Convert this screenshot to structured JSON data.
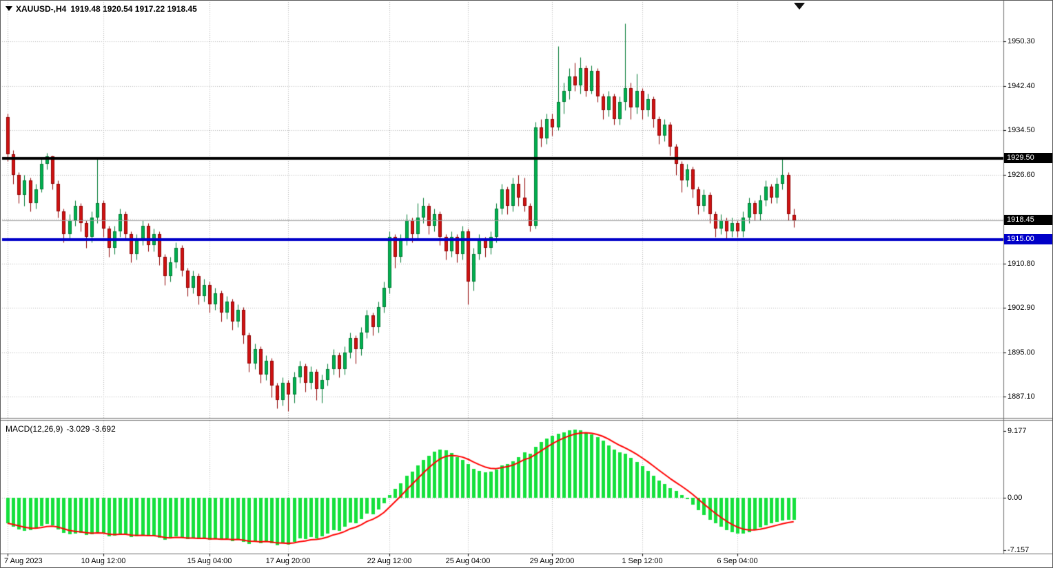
{
  "header": {
    "symbol": "XAUUSD-,H4",
    "ohlc": "1919.48 1920.54 1917.22 1918.45"
  },
  "colors": {
    "background": "#ffffff",
    "grid": "#b5b5b5",
    "axis_text": "#000000",
    "bull": "#00b050",
    "bear": "#d01212",
    "bull_line": "#007a33",
    "bear_line": "#8f0000",
    "macd_bar": "#14e03c",
    "signal_line": "#ff0000",
    "hline_black": "#000000",
    "hline_blue": "#0000c8",
    "current_price_line": "#9b9b9b",
    "tag_text": "#ffffff",
    "separator": "#6f6f6f"
  },
  "chart_data": [
    {
      "type": "candlestick",
      "title": "XAUUSD- H4 candlestick chart",
      "current_bar": {
        "open": 1919.48,
        "high": 1920.54,
        "low": 1917.22,
        "close": 1918.45
      },
      "current_price": 1918.45,
      "y_axis": {
        "tick_labels": [
          "1950.30",
          "1942.40",
          "1934.50",
          "1926.60",
          "1910.80",
          "1902.90",
          "1895.00",
          "1887.10"
        ],
        "tick_values": [
          1950.3,
          1942.4,
          1934.5,
          1926.6,
          1910.8,
          1902.9,
          1895.0,
          1887.1
        ],
        "grid_extra": [
          1918.7
        ]
      },
      "price_tags": [
        {
          "label": "1929.50",
          "value": 1929.5,
          "bg": "#000000"
        },
        {
          "label": "1918.45",
          "value": 1918.45,
          "bg": "#000000"
        },
        {
          "label": "1915.00",
          "value": 1915.0,
          "bg": "#0000c8"
        }
      ],
      "hlines": [
        {
          "value": 1929.5,
          "color": "#000000",
          "width": 4
        },
        {
          "value": 1915.0,
          "color": "#0000c8",
          "width": 4
        }
      ],
      "x_labels": [
        {
          "i": 0,
          "label": "7 Aug 2023"
        },
        {
          "i": 17,
          "label": "10 Aug 12:00"
        },
        {
          "i": 36,
          "label": "15 Aug 04:00"
        },
        {
          "i": 50,
          "label": "17 Aug 20:00"
        },
        {
          "i": 68,
          "label": "22 Aug 12:00"
        },
        {
          "i": 82,
          "label": "25 Aug 04:00"
        },
        {
          "i": 97,
          "label": "29 Aug 20:00"
        },
        {
          "i": 113,
          "label": "1 Sep 12:00"
        },
        {
          "i": 130,
          "label": "6 Sep 04:00"
        }
      ],
      "candles": [
        [
          1936.8,
          1937.5,
          1929.0,
          1930.2
        ],
        [
          1930.2,
          1931.0,
          1925.0,
          1926.5
        ],
        [
          1926.5,
          1927.0,
          1921.5,
          1923.0
        ],
        [
          1923.0,
          1926.5,
          1921.0,
          1925.5
        ],
        [
          1925.5,
          1926.0,
          1920.0,
          1921.5
        ],
        [
          1921.5,
          1925.0,
          1920.5,
          1924.0
        ],
        [
          1924.0,
          1929.5,
          1923.5,
          1928.5
        ],
        [
          1928.5,
          1930.5,
          1927.5,
          1929.8
        ],
        [
          1929.8,
          1930.0,
          1924.0,
          1925.0
        ],
        [
          1925.0,
          1925.5,
          1919.0,
          1920.0
        ],
        [
          1920.0,
          1920.5,
          1914.5,
          1916.0
        ],
        [
          1916.0,
          1919.5,
          1915.0,
          1918.5
        ],
        [
          1918.5,
          1922.0,
          1917.5,
          1921.0
        ],
        [
          1921.0,
          1921.5,
          1916.5,
          1918.0
        ],
        [
          1918.0,
          1918.5,
          1913.5,
          1915.5
        ],
        [
          1915.5,
          1920.0,
          1914.5,
          1919.0
        ],
        [
          1919.0,
          1929.5,
          1918.0,
          1921.5
        ],
        [
          1921.5,
          1922.0,
          1915.5,
          1917.0
        ],
        [
          1917.0,
          1917.5,
          1912.0,
          1913.5
        ],
        [
          1913.5,
          1917.5,
          1912.5,
          1916.5
        ],
        [
          1916.5,
          1920.5,
          1915.5,
          1919.5
        ],
        [
          1919.5,
          1920.0,
          1915.0,
          1916.0
        ],
        [
          1916.0,
          1916.5,
          1911.0,
          1912.5
        ],
        [
          1912.5,
          1916.0,
          1911.5,
          1915.0
        ],
        [
          1915.0,
          1918.5,
          1914.0,
          1917.5
        ],
        [
          1917.5,
          1918.0,
          1913.0,
          1914.0
        ],
        [
          1914.0,
          1917.0,
          1913.0,
          1916.0
        ],
        [
          1916.0,
          1916.5,
          1910.5,
          1912.0
        ],
        [
          1912.0,
          1912.5,
          1907.0,
          1908.5
        ],
        [
          1908.5,
          1912.0,
          1907.5,
          1911.0
        ],
        [
          1911.0,
          1914.5,
          1910.0,
          1913.5
        ],
        [
          1913.5,
          1914.0,
          1908.5,
          1909.5
        ],
        [
          1909.5,
          1910.0,
          1905.0,
          1906.5
        ],
        [
          1906.5,
          1909.5,
          1905.5,
          1908.5
        ],
        [
          1908.5,
          1909.0,
          1903.5,
          1905.0
        ],
        [
          1905.0,
          1908.0,
          1904.0,
          1907.0
        ],
        [
          1907.0,
          1907.5,
          1902.0,
          1903.5
        ],
        [
          1903.5,
          1906.5,
          1902.5,
          1905.5
        ],
        [
          1905.5,
          1906.0,
          1900.5,
          1902.0
        ],
        [
          1902.0,
          1905.0,
          1901.0,
          1904.0
        ],
        [
          1904.0,
          1904.5,
          1899.0,
          1900.5
        ],
        [
          1900.5,
          1903.5,
          1899.5,
          1902.5
        ],
        [
          1902.5,
          1903.0,
          1896.5,
          1898.0
        ],
        [
          1898.0,
          1898.5,
          1891.5,
          1893.0
        ],
        [
          1893.0,
          1896.5,
          1892.0,
          1895.5
        ],
        [
          1895.5,
          1896.0,
          1889.5,
          1891.0
        ],
        [
          1891.0,
          1894.5,
          1890.0,
          1893.5
        ],
        [
          1893.5,
          1894.0,
          1887.0,
          1889.0
        ],
        [
          1889.0,
          1889.5,
          1885.0,
          1886.5
        ],
        [
          1886.5,
          1890.5,
          1885.5,
          1889.5
        ],
        [
          1889.5,
          1890.0,
          1884.5,
          1887.5
        ],
        [
          1887.5,
          1891.5,
          1886.0,
          1890.5
        ],
        [
          1890.5,
          1893.5,
          1889.5,
          1892.5
        ],
        [
          1892.5,
          1893.0,
          1888.0,
          1889.5
        ],
        [
          1889.5,
          1892.5,
          1888.5,
          1891.5
        ],
        [
          1891.5,
          1892.0,
          1886.5,
          1888.5
        ],
        [
          1888.5,
          1891.0,
          1886.0,
          1890.0
        ],
        [
          1890.0,
          1893.0,
          1889.0,
          1892.0
        ],
        [
          1892.0,
          1895.5,
          1891.0,
          1894.5
        ],
        [
          1894.5,
          1895.0,
          1890.5,
          1892.0
        ],
        [
          1892.0,
          1896.0,
          1891.0,
          1895.0
        ],
        [
          1895.0,
          1898.5,
          1894.0,
          1897.5
        ],
        [
          1897.5,
          1898.0,
          1893.0,
          1895.5
        ],
        [
          1895.5,
          1899.5,
          1894.5,
          1898.5
        ],
        [
          1898.5,
          1902.5,
          1897.5,
          1901.5
        ],
        [
          1901.5,
          1902.0,
          1898.0,
          1899.5
        ],
        [
          1899.5,
          1904.0,
          1898.5,
          1903.0
        ],
        [
          1903.0,
          1907.5,
          1902.0,
          1906.5
        ],
        [
          1906.5,
          1916.5,
          1905.5,
          1915.5
        ],
        [
          1915.5,
          1916.0,
          1910.0,
          1912.0
        ],
        [
          1912.0,
          1916.0,
          1911.0,
          1915.0
        ],
        [
          1915.0,
          1919.5,
          1914.0,
          1918.5
        ],
        [
          1918.5,
          1919.0,
          1914.5,
          1916.0
        ],
        [
          1916.0,
          1921.5,
          1915.0,
          1919.0
        ],
        [
          1919.0,
          1922.5,
          1918.0,
          1921.0
        ],
        [
          1921.0,
          1921.5,
          1916.0,
          1917.5
        ],
        [
          1917.5,
          1920.5,
          1916.5,
          1919.5
        ],
        [
          1919.5,
          1920.0,
          1914.0,
          1915.5
        ],
        [
          1915.5,
          1916.0,
          1911.5,
          1913.0
        ],
        [
          1913.0,
          1916.5,
          1912.0,
          1915.5
        ],
        [
          1915.5,
          1916.0,
          1911.0,
          1912.5
        ],
        [
          1912.5,
          1917.5,
          1911.5,
          1916.5
        ],
        [
          1916.5,
          1917.0,
          1903.5,
          1907.5
        ],
        [
          1907.5,
          1913.5,
          1906.0,
          1912.5
        ],
        [
          1912.5,
          1916.0,
          1911.5,
          1915.0
        ],
        [
          1915.0,
          1915.5,
          1912.0,
          1913.5
        ],
        [
          1913.5,
          1916.5,
          1912.5,
          1915.5
        ],
        [
          1915.5,
          1921.5,
          1914.5,
          1920.5
        ],
        [
          1920.5,
          1925.0,
          1919.5,
          1924.0
        ],
        [
          1924.0,
          1924.5,
          1919.5,
          1921.0
        ],
        [
          1921.0,
          1926.0,
          1920.0,
          1925.0
        ],
        [
          1925.0,
          1926.5,
          1921.0,
          1922.5
        ],
        [
          1922.5,
          1926.0,
          1920.0,
          1921.0
        ],
        [
          1921.0,
          1921.5,
          1916.5,
          1917.5
        ],
        [
          1917.5,
          1936.0,
          1917.0,
          1935.0
        ],
        [
          1935.0,
          1936.5,
          1931.5,
          1933.0
        ],
        [
          1933.0,
          1937.5,
          1932.0,
          1936.5
        ],
        [
          1936.5,
          1937.5,
          1933.5,
          1935.0
        ],
        [
          1935.0,
          1949.5,
          1934.5,
          1939.5
        ],
        [
          1939.5,
          1943.0,
          1937.5,
          1941.5
        ],
        [
          1941.5,
          1945.5,
          1940.0,
          1944.0
        ],
        [
          1944.0,
          1946.5,
          1941.5,
          1942.5
        ],
        [
          1942.5,
          1947.5,
          1941.0,
          1945.5
        ],
        [
          1945.5,
          1946.0,
          1940.5,
          1941.5
        ],
        [
          1941.5,
          1946.0,
          1941.0,
          1945.0
        ],
        [
          1945.0,
          1945.5,
          1939.5,
          1940.5
        ],
        [
          1940.5,
          1941.0,
          1936.5,
          1938.0
        ],
        [
          1938.0,
          1941.5,
          1937.0,
          1940.5
        ],
        [
          1940.5,
          1941.0,
          1935.5,
          1936.5
        ],
        [
          1936.5,
          1940.5,
          1935.5,
          1939.5
        ],
        [
          1939.5,
          1953.5,
          1938.0,
          1942.0
        ],
        [
          1942.0,
          1943.0,
          1936.5,
          1938.5
        ],
        [
          1938.5,
          1944.5,
          1937.5,
          1941.5
        ],
        [
          1941.5,
          1942.0,
          1936.5,
          1938.0
        ],
        [
          1938.0,
          1941.0,
          1937.0,
          1940.0
        ],
        [
          1940.0,
          1940.5,
          1935.0,
          1936.5
        ],
        [
          1936.5,
          1937.0,
          1932.0,
          1933.5
        ],
        [
          1933.5,
          1936.5,
          1932.5,
          1935.5
        ],
        [
          1935.5,
          1936.0,
          1930.0,
          1931.5
        ],
        [
          1931.5,
          1932.0,
          1926.5,
          1928.5
        ],
        [
          1928.5,
          1929.0,
          1923.5,
          1925.5
        ],
        [
          1925.5,
          1928.5,
          1924.5,
          1927.5
        ],
        [
          1927.5,
          1928.0,
          1922.5,
          1924.0
        ],
        [
          1924.0,
          1924.5,
          1919.5,
          1921.0
        ],
        [
          1921.0,
          1924.0,
          1920.0,
          1923.0
        ],
        [
          1923.0,
          1923.5,
          1918.0,
          1919.5
        ],
        [
          1919.5,
          1920.0,
          1915.5,
          1917.0
        ],
        [
          1917.0,
          1919.5,
          1916.0,
          1918.5
        ],
        [
          1918.5,
          1919.0,
          1915.0,
          1916.5
        ],
        [
          1916.5,
          1919.0,
          1915.5,
          1918.0
        ],
        [
          1918.0,
          1918.5,
          1915.5,
          1916.5
        ],
        [
          1916.5,
          1920.0,
          1915.5,
          1919.0
        ],
        [
          1919.0,
          1922.5,
          1918.0,
          1921.5
        ],
        [
          1921.5,
          1922.0,
          1918.5,
          1919.5
        ],
        [
          1919.5,
          1923.0,
          1918.5,
          1922.0
        ],
        [
          1922.0,
          1925.5,
          1921.0,
          1924.5
        ],
        [
          1924.5,
          1925.0,
          1921.5,
          1922.5
        ],
        [
          1922.5,
          1926.0,
          1921.5,
          1925.0
        ],
        [
          1925.0,
          1929.5,
          1924.0,
          1926.5
        ],
        [
          1926.5,
          1927.0,
          1918.5,
          1919.5
        ],
        [
          1919.48,
          1920.54,
          1917.22,
          1918.45
        ]
      ]
    },
    {
      "type": "bar",
      "name": "MACD histogram with signal line",
      "label": "MACD(12,26,9)",
      "values_text": "-3.029 -3.692",
      "macd_value": -3.029,
      "signal_value": -3.692,
      "y_axis": {
        "tick_labels": [
          "9.177",
          "0.00",
          "-7.157"
        ],
        "tick_values": [
          9.177,
          0,
          -7.157
        ]
      },
      "histogram": [
        -3.5,
        -4.0,
        -4.3,
        -4.5,
        -4.4,
        -4.2,
        -3.9,
        -3.6,
        -3.8,
        -4.3,
        -4.8,
        -5.0,
        -4.9,
        -4.8,
        -5.1,
        -5.0,
        -4.7,
        -4.9,
        -5.3,
        -5.2,
        -4.9,
        -5.0,
        -5.4,
        -5.3,
        -5.1,
        -5.3,
        -5.2,
        -5.5,
        -5.8,
        -5.6,
        -5.3,
        -5.5,
        -5.7,
        -5.5,
        -5.7,
        -5.5,
        -5.8,
        -5.6,
        -5.8,
        -5.6,
        -5.9,
        -5.7,
        -6.0,
        -6.3,
        -6.0,
        -6.2,
        -5.9,
        -6.2,
        -6.5,
        -6.2,
        -6.4,
        -6.0,
        -5.6,
        -5.7,
        -5.4,
        -5.6,
        -5.3,
        -4.9,
        -4.4,
        -4.5,
        -4.0,
        -3.4,
        -3.5,
        -2.9,
        -2.2,
        -2.3,
        -1.6,
        -0.8,
        0.4,
        1.2,
        2.0,
        3.0,
        3.6,
        4.4,
        5.2,
        5.8,
        6.3,
        6.6,
        6.5,
        6.1,
        5.6,
        5.2,
        4.6,
        4.0,
        3.7,
        3.5,
        3.6,
        3.9,
        4.4,
        4.6,
        5.0,
        5.6,
        6.2,
        6.0,
        7.0,
        7.6,
        8.1,
        8.5,
        8.8,
        9.0,
        9.2,
        9.3,
        9.2,
        9.0,
        8.7,
        8.3,
        7.8,
        7.2,
        6.6,
        6.2,
        6.0,
        5.5,
        4.9,
        4.3,
        3.7,
        3.0,
        2.4,
        1.9,
        1.3,
        0.9,
        0.4,
        -0.2,
        -0.9,
        -1.7,
        -2.4,
        -3.0,
        -3.5,
        -4.0,
        -4.4,
        -4.7,
        -4.9,
        -4.9,
        -4.7,
        -4.4,
        -4.1,
        -3.8,
        -3.5,
        -3.3,
        -3.1,
        -3.0,
        -3.029
      ]
    }
  ]
}
